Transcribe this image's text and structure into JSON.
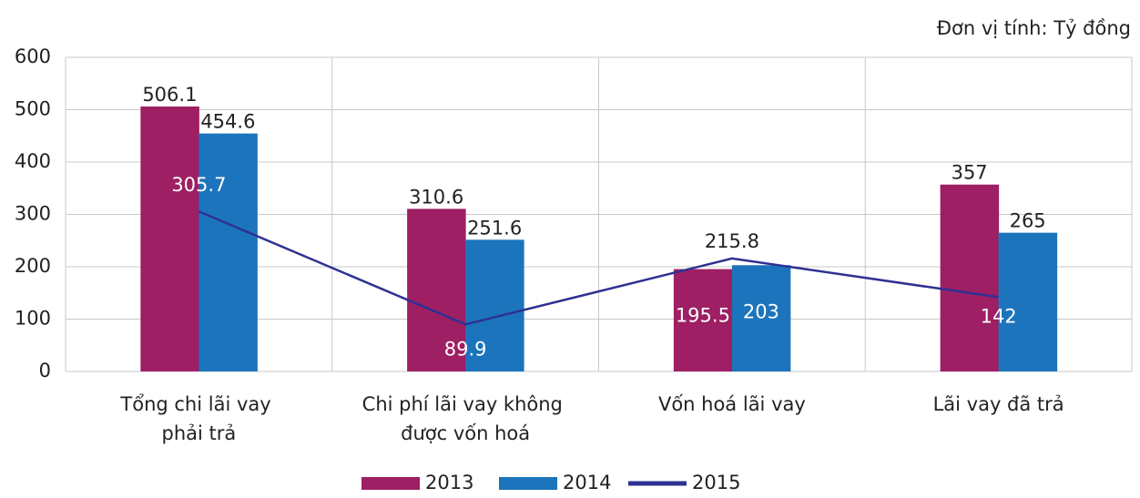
{
  "chart_data": {
    "type": "bar+line",
    "unit_note": "Đơn vị tính: Tỷ đồng",
    "categories": [
      "Tổng chi lãi vay phải trả",
      "Chi phí lãi vay không được vốn hoá",
      "Vốn hoá lãi vay",
      "Lãi vay đã trả"
    ],
    "series": [
      {
        "name": "2013",
        "type": "bar",
        "color": "#9e1f63",
        "values": [
          506.1,
          310.6,
          195.5,
          357
        ]
      },
      {
        "name": "2014",
        "type": "bar",
        "color": "#1c75bc",
        "values": [
          454.6,
          251.6,
          203,
          265
        ]
      },
      {
        "name": "2015",
        "type": "line",
        "color": "#2e3192",
        "values": [
          305.7,
          89.9,
          215.8,
          142
        ]
      }
    ],
    "ylim": [
      0,
      600
    ],
    "yticks": [
      0,
      100,
      200,
      300,
      400,
      500,
      600
    ],
    "grid": true,
    "legend": "bottom"
  }
}
